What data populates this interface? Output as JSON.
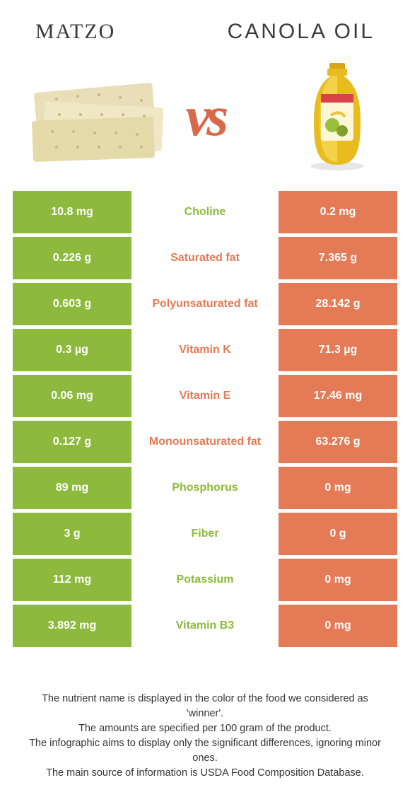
{
  "header": {
    "left_title": "Matzo",
    "right_title": "Canola oil",
    "vs_label": "vs"
  },
  "colors": {
    "left": "#8dba3c",
    "right": "#e57a56",
    "text": "#3a3a3a"
  },
  "rows": [
    {
      "label": "Choline",
      "left": "10.8 mg",
      "right": "0.2 mg",
      "winner": "left"
    },
    {
      "label": "Saturated fat",
      "left": "0.226 g",
      "right": "7.365 g",
      "winner": "right"
    },
    {
      "label": "Polyunsaturated fat",
      "left": "0.603 g",
      "right": "28.142 g",
      "winner": "right"
    },
    {
      "label": "Vitamin K",
      "left": "0.3 µg",
      "right": "71.3 µg",
      "winner": "right"
    },
    {
      "label": "Vitamin E",
      "left": "0.06 mg",
      "right": "17.46 mg",
      "winner": "right"
    },
    {
      "label": "Monounsaturated fat",
      "left": "0.127 g",
      "right": "63.276 g",
      "winner": "right"
    },
    {
      "label": "Phosphorus",
      "left": "89 mg",
      "right": "0 mg",
      "winner": "left"
    },
    {
      "label": "Fiber",
      "left": "3 g",
      "right": "0 g",
      "winner": "left"
    },
    {
      "label": "Potassium",
      "left": "112 mg",
      "right": "0 mg",
      "winner": "left"
    },
    {
      "label": "Vitamin B3",
      "left": "3.892 mg",
      "right": "0 mg",
      "winner": "left"
    }
  ],
  "footer": {
    "line1": "The nutrient name is displayed in the color of the food we considered as 'winner'.",
    "line2": "The amounts are specified per 100 gram of the product.",
    "line3": "The infographic aims to display only the significant differences, ignoring minor ones.",
    "line4": "The main source of information is USDA Food Composition Database."
  }
}
